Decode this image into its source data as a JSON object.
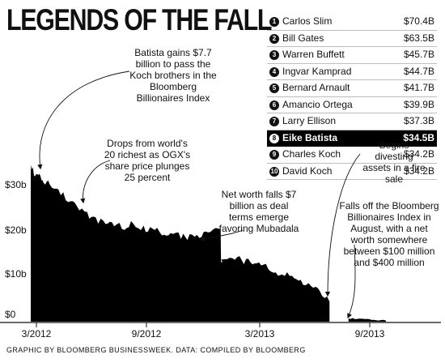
{
  "title": "LEGENDS OF THE FALL",
  "ranking": [
    {
      "rank": "1",
      "name": "Carlos Slim",
      "worth": "$70.4B"
    },
    {
      "rank": "2",
      "name": "Bill Gates",
      "worth": "$63.5B"
    },
    {
      "rank": "3",
      "name": "Warren Buffett",
      "worth": "$45.7B"
    },
    {
      "rank": "4",
      "name": "Ingvar Kamprad",
      "worth": "$44.7B"
    },
    {
      "rank": "5",
      "name": "Bernard Arnault",
      "worth": "$41.7B"
    },
    {
      "rank": "6",
      "name": "Amancio Ortega",
      "worth": "$39.9B"
    },
    {
      "rank": "7",
      "name": "Larry Ellison",
      "worth": "$37.3B"
    },
    {
      "rank": "8",
      "name": "Eike Batista",
      "worth": "$34.5B",
      "highlight": true
    },
    {
      "rank": "9",
      "name": "Charles Koch",
      "worth": "$34.2B"
    },
    {
      "rank": "10",
      "name": "David Koch",
      "worth": "$34.2B"
    }
  ],
  "annotations": {
    "a1": "Batista gains $7.7 billion to pass the Koch brothers in the Bloomberg Billionaires Index",
    "a2": "Drops from world's 20 richest as OGX's share price plunges 25 percent",
    "a3": "Net worth falls $7 billion as deal terms emerge favoring Mubadala",
    "a4": "Begins divesting assets in a fire sale",
    "a5": "Falls off the Bloomberg Billionaires Index in August, with a net worth somewhere between $100 million and $400 million"
  },
  "footer": "GRAPHIC BY BLOOMBERG BUSINESSWEEK. DATA: COMPILED BY BLOOMBERG",
  "colors": {
    "fill": "#000000",
    "text": "#111111",
    "highlight_bg": "#000000"
  },
  "chart_data": {
    "type": "area",
    "title": "",
    "xlabel": "",
    "ylabel": "",
    "x_tick_labels": [
      "3/2012",
      "9/2012",
      "3/2013",
      "9/2013"
    ],
    "y_tick_labels": [
      "$30b",
      "$20b",
      "$10b",
      "$0"
    ],
    "y_ticks": [
      30,
      20,
      10,
      0
    ],
    "ylim": [
      0,
      33
    ],
    "x": [
      "2012-03-01",
      "2012-03-08",
      "2012-03-15",
      "2012-03-22",
      "2012-04-01",
      "2012-04-15",
      "2012-05-01",
      "2012-05-15",
      "2012-06-01",
      "2012-06-15",
      "2012-07-01",
      "2012-07-15",
      "2012-08-01",
      "2012-08-15",
      "2012-09-01",
      "2012-09-15",
      "2012-10-01",
      "2012-10-15",
      "2012-11-01",
      "2012-11-15",
      "2012-12-01",
      "2012-12-15",
      "2013-01-01",
      "2013-01-15",
      "2013-02-01",
      "2013-02-15",
      "2013-03-01",
      "2013-03-15",
      "2013-04-01",
      "2013-04-15",
      "2013-05-01",
      "2013-05-15",
      "2013-06-01",
      "2013-06-15",
      "2013-07-01",
      "2013-07-15",
      "2013-08-01",
      "2013-08-15",
      "2013-09-01",
      "2013-09-15",
      "2013-10-01"
    ],
    "series": [
      {
        "values": [
          34.5,
          32.5,
          32,
          31,
          30.5,
          29,
          27,
          25,
          23.5,
          22.5,
          21.5,
          21,
          21,
          21.5,
          20.5,
          20.5,
          19.5,
          19.5,
          19,
          18.5,
          19,
          19.5,
          20.5,
          13.5,
          14.5,
          13,
          13.5,
          12.5,
          11,
          10.5,
          10,
          9,
          8,
          6.5,
          4.5,
          null,
          0.7,
          0.7,
          0.5,
          0.4,
          0.3
        ]
      }
    ],
    "grid": false,
    "legend": "none"
  }
}
